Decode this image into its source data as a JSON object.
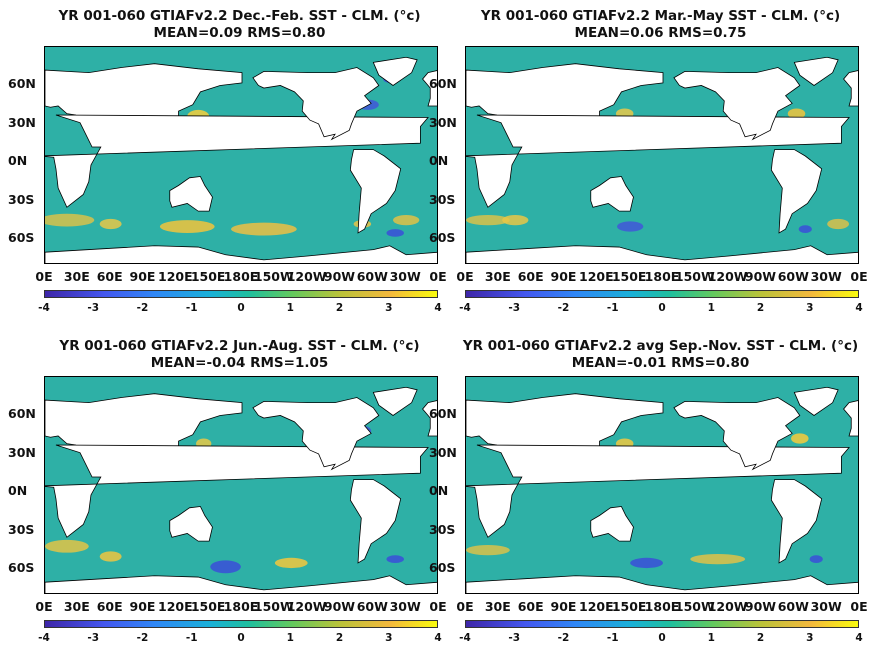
{
  "chart_data": [
    {
      "type": "heatmap",
      "title": "YR 001-060 GTIAFv2.2  Dec.-Feb. SST - CLM. (°c)",
      "subtitle": "MEAN=0.09   RMS=0.80",
      "y_ticks": [
        "60N",
        "30N",
        "0N",
        "30S",
        "60S"
      ],
      "x_ticks": [
        "0E",
        "30E",
        "60E",
        "90E",
        "120E",
        "150E",
        "180E",
        "150W",
        "120W",
        "90W",
        "60W",
        "30W",
        "0E"
      ],
      "colorbar_ticks": [
        "-4",
        "-3",
        "-2",
        "-1",
        "0",
        "1",
        "2",
        "3",
        "4"
      ],
      "clim": [
        -4,
        4
      ]
    },
    {
      "type": "heatmap",
      "title": "YR 001-060 GTIAFv2.2 Mar.-May SST - CLM. (°c)",
      "subtitle": "MEAN=0.06   RMS=0.75",
      "y_ticks": [
        "60N",
        "30N",
        "0N",
        "30S",
        "60S"
      ],
      "x_ticks": [
        "0E",
        "30E",
        "60E",
        "90E",
        "120E",
        "150E",
        "180E",
        "150W",
        "120W",
        "90W",
        "60W",
        "30W",
        "0E"
      ],
      "colorbar_ticks": [
        "-4",
        "-3",
        "-2",
        "-1",
        "0",
        "1",
        "2",
        "3",
        "4"
      ],
      "clim": [
        -4,
        4
      ]
    },
    {
      "type": "heatmap",
      "title": "YR 001-060 GTIAFv2.2 Jun.-Aug. SST - CLM. (°c)",
      "subtitle": "MEAN=-0.04   RMS=1.05",
      "y_ticks": [
        "60N",
        "30N",
        "0N",
        "30S",
        "60S"
      ],
      "x_ticks": [
        "0E",
        "30E",
        "60E",
        "90E",
        "120E",
        "150E",
        "180E",
        "150W",
        "120W",
        "90W",
        "60W",
        "30W",
        "0E"
      ],
      "colorbar_ticks": [
        "-4",
        "-3",
        "-2",
        "-1",
        "0",
        "1",
        "2",
        "3",
        "4"
      ],
      "clim": [
        -4,
        4
      ]
    },
    {
      "type": "heatmap",
      "title": "YR 001-060 GTIAFv2.2 avg Sep.-Nov. SST - CLM. (°c)",
      "subtitle": "MEAN=-0.01   RMS=0.80",
      "y_ticks": [
        "60N",
        "30N",
        "0N",
        "30S",
        "60S"
      ],
      "x_ticks": [
        "0E",
        "30E",
        "60E",
        "90E",
        "120E",
        "150E",
        "180E",
        "150W",
        "120W",
        "90W",
        "60W",
        "30W",
        "0E"
      ],
      "colorbar_ticks": [
        "-4",
        "-3",
        "-2",
        "-1",
        "0",
        "1",
        "2",
        "3",
        "4"
      ],
      "clim": [
        -4,
        4
      ]
    }
  ],
  "colors": {
    "ocean": "#2eb0a6",
    "land": "#ffffff",
    "warm": "#f3c53a",
    "cold": "#3a4fd8"
  }
}
